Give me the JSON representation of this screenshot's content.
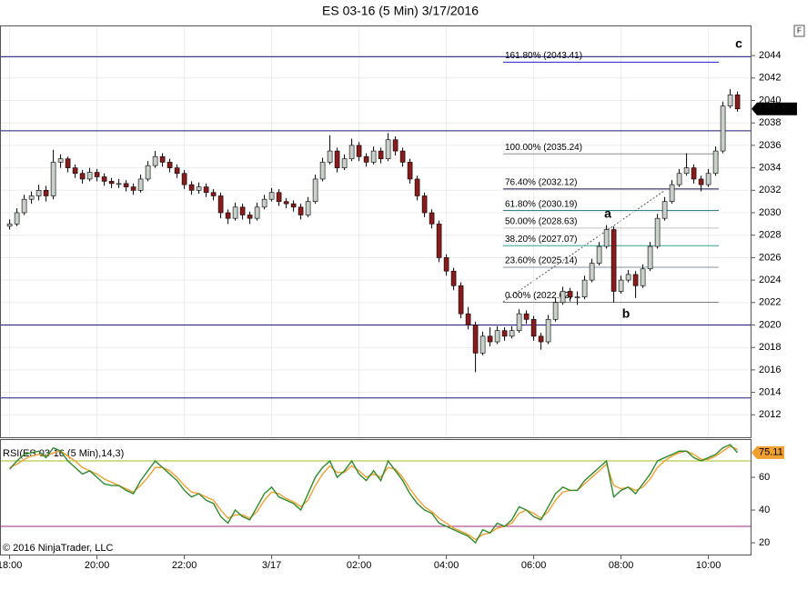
{
  "corner_button": "F",
  "watermark": "© 2016 NinjaTrader, LLC",
  "chart_data": [
    {
      "type": "candlestick",
      "title": "ES 03-16 (5 Min)  3/17/2016",
      "up_color": "#c9cfc9",
      "down_color": "#8b1a1a",
      "xlim": [
        -1.2,
        101.8
      ],
      "ylim": [
        2010,
        2046.6
      ],
      "yticks": [
        2012,
        2014,
        2016,
        2018,
        2020,
        2022,
        2024,
        2026,
        2028,
        2030,
        2032,
        2034,
        2036,
        2038,
        2040,
        2042,
        2044
      ],
      "grid": true,
      "values": [
        [
          2028.8,
          2029.4,
          2028.5,
          2029.0
        ],
        [
          2029.0,
          2030.4,
          2028.8,
          2030.0
        ],
        [
          2030.0,
          2031.6,
          2029.8,
          2031.2
        ],
        [
          2031.2,
          2031.9,
          2030.8,
          2031.5
        ],
        [
          2031.5,
          2032.5,
          2031.1,
          2032.0
        ],
        [
          2032.0,
          2032.4,
          2031.0,
          2031.5
        ],
        [
          2031.5,
          2035.6,
          2031.2,
          2034.5
        ],
        [
          2034.5,
          2035.2,
          2034.0,
          2034.8
        ],
        [
          2034.8,
          2035.0,
          2033.6,
          2034.0
        ],
        [
          2034.0,
          2034.3,
          2033.1,
          2033.5
        ],
        [
          2033.5,
          2033.8,
          2032.6,
          2033.0
        ],
        [
          2033.0,
          2034.0,
          2032.8,
          2033.6
        ],
        [
          2033.6,
          2033.9,
          2032.8,
          2033.2
        ],
        [
          2033.2,
          2033.5,
          2032.4,
          2032.8
        ],
        [
          2032.8,
          2033.1,
          2032.2,
          2032.6
        ],
        [
          2032.6,
          2033.0,
          2032.2,
          2032.6
        ],
        [
          2032.6,
          2032.9,
          2031.9,
          2032.3
        ],
        [
          2032.3,
          2032.6,
          2031.6,
          2032.0
        ],
        [
          2032.0,
          2033.4,
          2031.8,
          2033.0
        ],
        [
          2033.0,
          2034.6,
          2032.8,
          2034.2
        ],
        [
          2034.2,
          2035.5,
          2034.0,
          2035.0
        ],
        [
          2035.0,
          2035.3,
          2034.1,
          2034.5
        ],
        [
          2034.5,
          2034.8,
          2033.6,
          2034.0
        ],
        [
          2034.0,
          2034.3,
          2033.1,
          2033.5
        ],
        [
          2033.5,
          2033.8,
          2032.1,
          2032.5
        ],
        [
          2032.5,
          2032.8,
          2031.6,
          2032.0
        ],
        [
          2032.0,
          2032.7,
          2031.7,
          2032.3
        ],
        [
          2032.3,
          2032.6,
          2031.4,
          2031.8
        ],
        [
          2031.8,
          2032.1,
          2031.1,
          2031.5
        ],
        [
          2031.5,
          2031.8,
          2029.5,
          2030.0
        ],
        [
          2030.0,
          2030.3,
          2029.0,
          2029.5
        ],
        [
          2029.5,
          2030.9,
          2029.3,
          2030.5
        ],
        [
          2030.5,
          2030.8,
          2029.4,
          2029.8
        ],
        [
          2029.8,
          2030.1,
          2029.0,
          2029.5
        ],
        [
          2029.5,
          2030.9,
          2029.3,
          2030.5
        ],
        [
          2030.5,
          2031.6,
          2030.3,
          2031.2
        ],
        [
          2031.2,
          2032.2,
          2031.0,
          2031.8
        ],
        [
          2031.8,
          2032.1,
          2030.6,
          2031.0
        ],
        [
          2031.0,
          2031.3,
          2030.4,
          2030.8
        ],
        [
          2030.8,
          2031.1,
          2030.1,
          2030.5
        ],
        [
          2030.5,
          2030.8,
          2029.4,
          2029.8
        ],
        [
          2029.8,
          2031.4,
          2029.6,
          2031.0
        ],
        [
          2031.0,
          2033.4,
          2030.8,
          2033.0
        ],
        [
          2033.0,
          2034.9,
          2032.8,
          2034.5
        ],
        [
          2034.5,
          2036.9,
          2034.3,
          2035.5
        ],
        [
          2035.5,
          2035.8,
          2033.6,
          2034.0
        ],
        [
          2034.0,
          2035.2,
          2033.8,
          2034.8
        ],
        [
          2034.8,
          2036.6,
          2034.6,
          2036.0
        ],
        [
          2036.0,
          2036.3,
          2034.6,
          2035.0
        ],
        [
          2035.0,
          2035.3,
          2034.1,
          2034.5
        ],
        [
          2034.5,
          2035.9,
          2034.3,
          2035.5
        ],
        [
          2035.5,
          2035.8,
          2034.4,
          2034.8
        ],
        [
          2034.8,
          2037.1,
          2034.6,
          2036.5
        ],
        [
          2036.5,
          2036.8,
          2035.1,
          2035.5
        ],
        [
          2035.5,
          2035.8,
          2034.1,
          2034.5
        ],
        [
          2034.5,
          2034.8,
          2032.6,
          2033.0
        ],
        [
          2033.0,
          2033.3,
          2031.1,
          2031.5
        ],
        [
          2031.5,
          2031.8,
          2029.6,
          2030.0
        ],
        [
          2030.0,
          2030.3,
          2028.6,
          2029.0
        ],
        [
          2029.0,
          2029.3,
          2025.6,
          2026.0
        ],
        [
          2026.0,
          2026.3,
          2024.4,
          2024.8
        ],
        [
          2024.8,
          2025.1,
          2023.1,
          2023.5
        ],
        [
          2023.5,
          2023.8,
          2020.6,
          2021.0
        ],
        [
          2021.0,
          2021.6,
          2019.6,
          2020.0
        ],
        [
          2020.0,
          2020.3,
          2015.8,
          2017.5
        ],
        [
          2017.5,
          2019.4,
          2017.3,
          2019.0
        ],
        [
          2019.0,
          2019.8,
          2018.1,
          2018.5
        ],
        [
          2018.5,
          2019.9,
          2018.3,
          2019.5
        ],
        [
          2019.5,
          2019.8,
          2018.6,
          2019.0
        ],
        [
          2019.0,
          2019.9,
          2018.8,
          2019.5
        ],
        [
          2019.5,
          2021.4,
          2019.3,
          2021.0
        ],
        [
          2021.0,
          2021.3,
          2020.1,
          2020.5
        ],
        [
          2020.5,
          2020.8,
          2018.6,
          2019.0
        ],
        [
          2019.0,
          2019.3,
          2017.8,
          2018.5
        ],
        [
          2018.5,
          2020.9,
          2018.3,
          2020.5
        ],
        [
          2020.5,
          2022.4,
          2020.3,
          2022.0
        ],
        [
          2022.0,
          2023.4,
          2021.8,
          2023.0
        ],
        [
          2023.0,
          2023.3,
          2022.1,
          2022.5
        ],
        [
          2022.5,
          2023.0,
          2021.8,
          2022.5
        ],
        [
          2022.5,
          2024.4,
          2022.3,
          2024.0
        ],
        [
          2024.0,
          2025.9,
          2023.8,
          2025.5
        ],
        [
          2025.5,
          2027.4,
          2025.3,
          2027.0
        ],
        [
          2027.0,
          2028.9,
          2026.8,
          2028.5
        ],
        [
          2028.5,
          2028.8,
          2022.0,
          2023.0
        ],
        [
          2023.0,
          2024.4,
          2022.8,
          2024.0
        ],
        [
          2024.0,
          2024.9,
          2023.8,
          2024.5
        ],
        [
          2024.5,
          2024.8,
          2022.4,
          2023.5
        ],
        [
          2023.5,
          2025.4,
          2023.3,
          2025.0
        ],
        [
          2025.0,
          2027.4,
          2024.8,
          2027.0
        ],
        [
          2027.0,
          2029.9,
          2026.8,
          2029.5
        ],
        [
          2029.5,
          2031.4,
          2029.3,
          2031.0
        ],
        [
          2031.0,
          2032.9,
          2030.8,
          2032.5
        ],
        [
          2032.5,
          2033.9,
          2032.3,
          2033.5
        ],
        [
          2033.5,
          2035.3,
          2033.3,
          2034.0
        ],
        [
          2034.0,
          2034.3,
          2032.6,
          2033.0
        ],
        [
          2033.0,
          2033.3,
          2031.9,
          2032.5
        ],
        [
          2032.5,
          2033.9,
          2032.3,
          2033.5
        ],
        [
          2033.5,
          2035.9,
          2033.3,
          2035.5
        ],
        [
          2035.5,
          2039.9,
          2035.3,
          2039.5
        ],
        [
          2039.5,
          2041.0,
          2039.3,
          2040.5
        ],
        [
          2040.5,
          2040.8,
          2039.0,
          2039.25
        ]
      ],
      "hlines": [
        {
          "value": 2043.9,
          "color": "#1a1a80"
        },
        {
          "value": 2037.3,
          "color": "#1a1a80"
        },
        {
          "value": 2020.0,
          "color": "#1a1a80"
        },
        {
          "value": 2013.5,
          "color": "#1a1a80"
        }
      ],
      "fib_levels": [
        {
          "label": "161.80% (2043.41)",
          "value": 2043.41,
          "color": "#2020c0"
        },
        {
          "label": "100.00% (2035.24)",
          "value": 2035.24,
          "color": "#909090"
        },
        {
          "label": "76.40% (2032.12)",
          "value": 2032.12,
          "color": "#10104a"
        },
        {
          "label": "61.80% (2030.19)",
          "value": 2030.19,
          "color": "#207080"
        },
        {
          "label": "50.00% (2028.63)",
          "value": 2028.63,
          "color": "#c0c0c0"
        },
        {
          "label": "38.20% (2027.07)",
          "value": 2027.07,
          "color": "#30a0a0"
        },
        {
          "label": "23.60% (2025.14)",
          "value": 2025.14,
          "color": "#8090a0"
        },
        {
          "label": "0.00% (2022.02)",
          "value": 2022.02,
          "color": "#808080"
        }
      ],
      "annotations": [
        "a",
        "b",
        "c"
      ]
    },
    {
      "type": "line",
      "title": "RSI(ES 03-16 (5 Min),14,3)",
      "xlim": [
        -1.2,
        101.8
      ],
      "ylim": [
        12.8,
        82.8
      ],
      "yticks": [
        20,
        40,
        60
      ],
      "xticks": [
        {
          "value": 0,
          "label": "18:00"
        },
        {
          "value": 12,
          "label": "20:00"
        },
        {
          "value": 24,
          "label": "22:00"
        },
        {
          "value": 36,
          "label": "3/17"
        },
        {
          "value": 48,
          "label": "02:00"
        },
        {
          "value": 60,
          "label": "04:00"
        },
        {
          "value": 72,
          "label": "06:00"
        },
        {
          "value": 84,
          "label": "08:00"
        },
        {
          "value": 96,
          "label": "10:00"
        }
      ],
      "hlines": [
        {
          "value": 70,
          "color": "#a8b820"
        },
        {
          "value": 30,
          "color": "#a02880"
        }
      ],
      "series": [
        {
          "color": "#2e8b2e",
          "values": [
            65,
            70,
            74,
            75,
            76,
            72,
            78,
            76,
            70,
            66,
            62,
            64,
            60,
            56,
            55,
            55,
            52,
            50,
            58,
            64,
            70,
            66,
            62,
            58,
            52,
            48,
            50,
            46,
            44,
            36,
            32,
            40,
            36,
            34,
            42,
            50,
            54,
            48,
            46,
            44,
            40,
            50,
            60,
            66,
            70,
            60,
            64,
            70,
            62,
            58,
            64,
            58,
            70,
            64,
            58,
            50,
            44,
            40,
            38,
            32,
            30,
            28,
            26,
            24,
            20,
            28,
            26,
            32,
            30,
            34,
            42,
            40,
            36,
            34,
            42,
            50,
            54,
            52,
            52,
            58,
            62,
            66,
            70,
            48,
            52,
            54,
            50,
            56,
            62,
            70,
            72,
            74,
            76,
            76,
            72,
            70,
            72,
            74,
            78,
            80,
            75.11
          ]
        },
        {
          "color": "#f0a030",
          "values": [
            66,
            68,
            71,
            73,
            74,
            73,
            75,
            76,
            73,
            70,
            66,
            64,
            62,
            59,
            57,
            55,
            53,
            51,
            55,
            60,
            66,
            66,
            64,
            60,
            55,
            51,
            50,
            48,
            46,
            40,
            35,
            37,
            37,
            35,
            39,
            46,
            51,
            50,
            47,
            45,
            42,
            46,
            55,
            62,
            67,
            63,
            63,
            67,
            64,
            60,
            62,
            60,
            66,
            65,
            60,
            53,
            47,
            42,
            39,
            35,
            32,
            29,
            27,
            25,
            22,
            25,
            26,
            29,
            30,
            32,
            38,
            40,
            38,
            35,
            39,
            46,
            51,
            52,
            52,
            56,
            60,
            64,
            68,
            55,
            53,
            54,
            52,
            54,
            59,
            66,
            70,
            73,
            75,
            76,
            74,
            71,
            71,
            73,
            76,
            79,
            77
          ]
        }
      ]
    }
  ]
}
